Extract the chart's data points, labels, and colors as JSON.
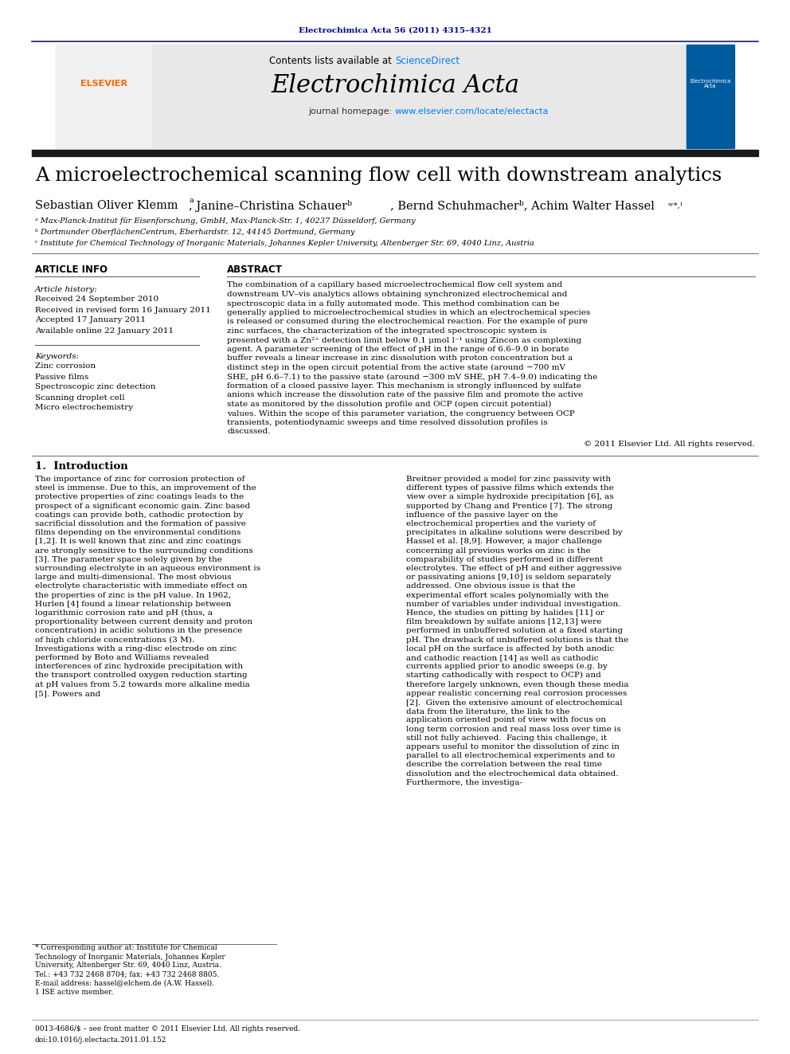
{
  "journal_ref": "Electrochimica Acta 56 (2011) 4315–4321",
  "contents_text": "Contents lists available at ScienceDirect",
  "sciencedirect_color": "#007bff",
  "journal_name": "Electrochimica Acta",
  "journal_homepage": "journal homepage: www.elsevier.com/locate/electacta",
  "homepage_url_color": "#007bff",
  "header_bar_color": "#1a1a6e",
  "title": "A microelectrochemical scanning flow cell with downstream analytics",
  "authors": "Sebastian Oliver Klemmᵃ, Janine–Christina Schauerᵇ, Bernd Schuhmacherᵇ, Achim Walter Hasselᵃʸ*,¹",
  "affil_a": "ᵃ Max-Planck-Institut für Eisenforschung, GmbH, Max-Planck-Str. 1, 40237 Düsseldorf, Germany",
  "affil_b": "ᵇ Dortmunder OberflächenCentrum, Eberhardstr. 12, 44145 Dortmund, Germany",
  "affil_c": "ᶜ Institute for Chemical Technology of Inorganic Materials, Johannes Kepler University, Altenberger Str. 69, 4040 Linz, Austria",
  "article_info_title": "ARTICLE INFO",
  "abstract_title": "ABSTRACT",
  "article_history_label": "Article history:",
  "received": "Received 24 September 2010",
  "revised": "Received in revised form 16 January 2011",
  "accepted": "Accepted 17 January 2011",
  "available": "Available online 22 January 2011",
  "keywords_label": "Keywords:",
  "keywords": [
    "Zinc corrosion",
    "Passive films",
    "Spectroscopic zinc detection",
    "Scanning droplet cell",
    "Micro electrochemistry"
  ],
  "abstract_text": "The combination of a capillary based microelectrochemical flow cell system and downstream UV–vis analytics allows obtaining synchronized electrochemical and spectroscopic data in a fully automated mode. This method combination can be generally applied to microelectrochemical studies in which an electrochemical species is released or consumed during the electrochemical reaction. For the example of pure zinc surfaces, the characterization of the integrated spectroscopic system is presented with a Zn²⁺ detection limit below 0.1 μmol l⁻¹ using Zincon as complexing agent. A parameter screening of the effect of pH in the range of 6.6–9.0 in borate buffer reveals a linear increase in zinc dissolution with proton concentration but a distinct step in the open circuit potential from the active state (around −700 mV SHE, pH 6.6–7.1) to the passive state (around −300 mV SHE, pH 7.4–9.0) indicating the formation of a closed passive layer. This mechanism is strongly influenced by sulfate anions which increase the dissolution rate of the passive film and promote the active state as monitored by the dissolution profile and OCP (open circuit potential) values. Within the scope of this parameter variation, the congruency between OCP transients, potentiodynamic sweeps and time resolved dissolution profiles is discussed.",
  "copyright": "© 2011 Elsevier Ltd. All rights reserved.",
  "intro_title": "1.  Introduction",
  "intro_col1": "The importance of zinc for corrosion protection of steel is immense. Due to this, an improvement of the protective properties of zinc coatings leads to the prospect of a significant economic gain. Zinc based coatings can provide both, cathodic protection by sacrificial dissolution and the formation of passive films depending on the environmental conditions [1,2]. It is well known that zinc and zinc coatings are strongly sensitive to the surrounding conditions [3]. The parameter space solely given by the surrounding electrolyte in an aqueous environment is large and multi-dimensional. The most obvious electrolyte characteristic with immediate effect on the properties of zinc is the pH value. In 1962, Hurlen [4] found a linear relationship between logarithmic corrosion rate and pH (thus, a proportionality between current density and proton concentration) in acidic solutions in the presence of high chloride concentrations (3 M). Investigations with a ring-disc electrode on zinc performed by Boto and Williams revealed interferences of zinc hydroxide precipitation with the transport controlled oxygen reduction starting at pH values from 5.2 towards more alkaline media [5]. Powers and",
  "intro_col2": "Breitner provided a model for zinc passivity with different types of passive films which extends the view over a simple hydroxide precipitation [6], as supported by Chang and Prentice [7]. The strong influence of the passive layer on the electrochemical properties and the variety of precipitates in alkaline solutions were described by Hassel et al. [8,9]. However, a major challenge concerning all previous works on zinc is the comparability of studies performed in different electrolytes. The effect of pH and either aggressive or passivating anions [9,10] is seldom separately addressed. One obvious issue is that the experimental effort scales polynomially with the number of variables under individual investigation. Hence, the studies on pitting by halides [11] or film breakdown by sulfate anions [12,13] were performed in unbuffered solution at a fixed starting pH. The drawback of unbuffered solutions is that the local pH on the surface is affected by both anodic and cathodic reaction [14] as well as cathodic currents applied prior to anodic sweeps (e.g. by starting cathodically with respect to OCP) and therefore largely unknown, even though these media appear realistic concerning real corrosion processes [2].\n\nGiven the extensive amount of electrochemical data from the literature, the link to the application oriented point of view with focus on long term corrosion and real mass loss over time is still not fully achieved.\n\nFacing this challenge, it appears useful to monitor the dissolution of zinc in parallel to all electrochemical experiments and to describe the correlation between the real time dissolution and the electrochemical data obtained. Furthermore, the investiga-",
  "footnote1": "* Corresponding author at: Institute for Chemical Technology of Inorganic Materials, Johannes Kepler University, Altenberger Str. 69, 4040 Linz, Austria. Tel.: +43 732 2468 8704; fax: +43 732 2468 8805.",
  "footnote_email": "E-mail address: hassel@elchem.de (A.W. Hassel).",
  "footnote2": "1 ISE active member.",
  "footer_left": "0013-4686/$ – see front matter © 2011 Elsevier Ltd. All rights reserved.",
  "footer_doi": "doi:10.1016/j.electacta.2011.01.152",
  "bg_color": "#ffffff",
  "header_bg": "#e8e8e8",
  "journal_ref_color": "#00008B",
  "text_color": "#000000"
}
